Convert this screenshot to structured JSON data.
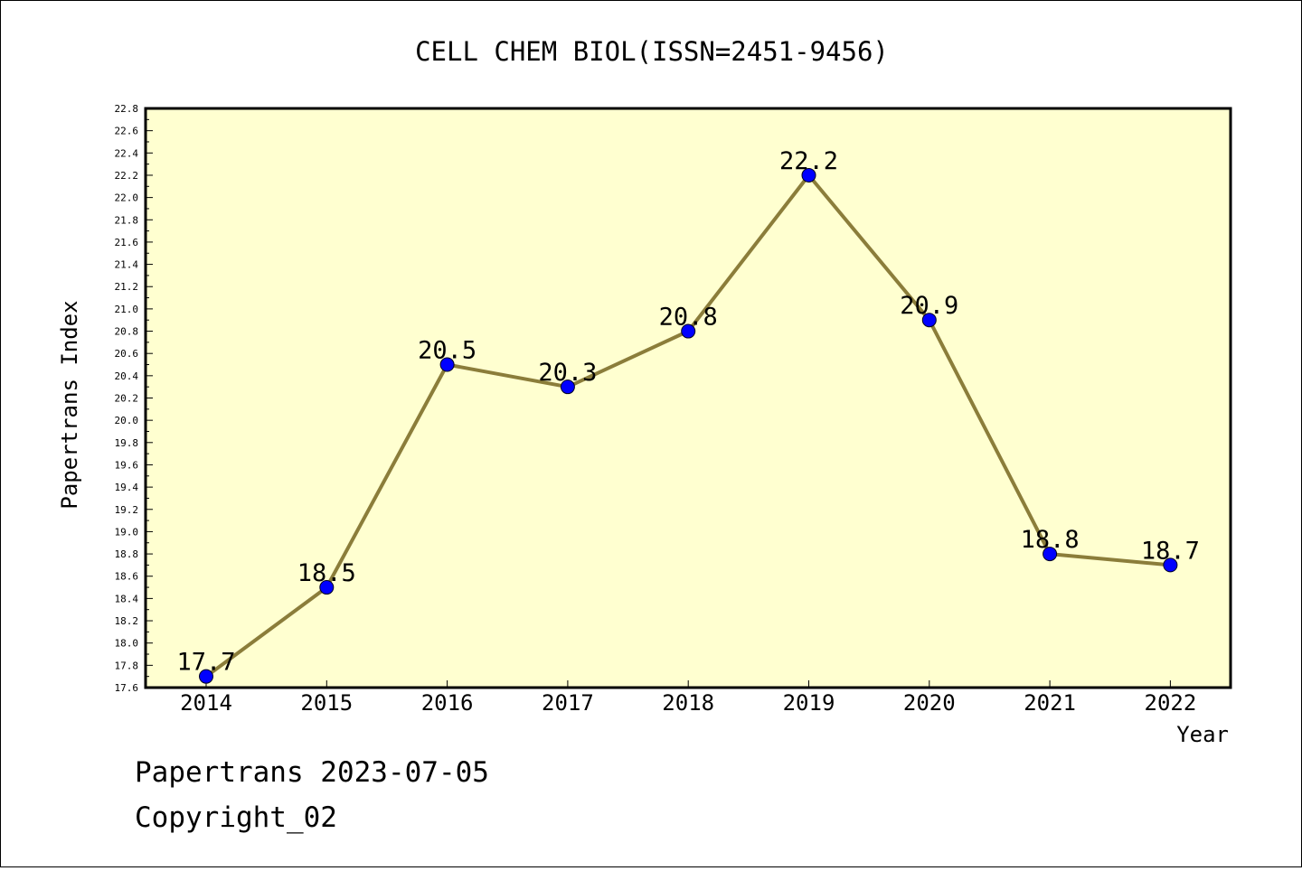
{
  "chart_data": {
    "type": "line",
    "title": "CELL CHEM BIOL(ISSN=2451-9456)",
    "xlabel": "Year",
    "ylabel": "Papertrans Index",
    "categories": [
      "2014",
      "2015",
      "2016",
      "2017",
      "2018",
      "2019",
      "2020",
      "2021",
      "2022"
    ],
    "values": [
      17.7,
      18.5,
      20.5,
      20.3,
      20.8,
      22.2,
      20.9,
      18.8,
      18.7
    ],
    "value_labels": [
      "17.7",
      "18.5",
      "20.5",
      "20.3",
      "20.8",
      "22.2",
      "20.9",
      "18.8",
      "18.7"
    ],
    "ylim": [
      17.6,
      22.8
    ],
    "ytick_step": 0.2,
    "grid": false,
    "colors": {
      "plot_background": "#ffffd0",
      "line": "#8b7d3a",
      "marker": "#0000ff",
      "axis": "#000000"
    }
  },
  "footer": {
    "line1": "Papertrans 2023-07-05",
    "line2": "Copyright_02"
  }
}
